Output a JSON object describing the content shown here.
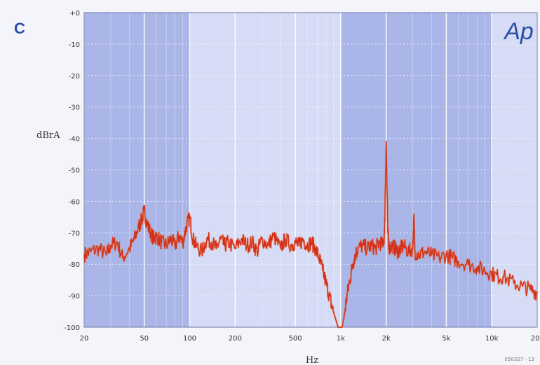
{
  "panel_letter": "C",
  "brand": "Ap",
  "footnote": "050327 - 13",
  "colors": {
    "band": "#aab6e8",
    "band_light": "#d6dcf5",
    "grid": "#ffffff",
    "trace": "#d2301c",
    "trace_highlight": "#f06a22",
    "axis_text": "#333333",
    "brand": "#2b4fa6"
  },
  "chart_data": {
    "type": "line",
    "title": "",
    "xlabel": "Hz",
    "ylabel": "dBrA",
    "x_scale": "log",
    "xlim": [
      20,
      20000
    ],
    "ylim": [
      -100,
      0
    ],
    "x_ticks": [
      {
        "value": 20,
        "label": "20"
      },
      {
        "value": 50,
        "label": "50"
      },
      {
        "value": 100,
        "label": "100"
      },
      {
        "value": 200,
        "label": "200"
      },
      {
        "value": 500,
        "label": "500"
      },
      {
        "value": 1000,
        "label": "1k"
      },
      {
        "value": 2000,
        "label": "2k"
      },
      {
        "value": 5000,
        "label": "5k"
      },
      {
        "value": 10000,
        "label": "10k"
      },
      {
        "value": 20000,
        "label": "20k"
      }
    ],
    "y_ticks": [
      {
        "value": 0,
        "label": "+0"
      },
      {
        "value": -10,
        "label": "-10"
      },
      {
        "value": -20,
        "label": "-20"
      },
      {
        "value": -30,
        "label": "-30"
      },
      {
        "value": -40,
        "label": "-40"
      },
      {
        "value": -50,
        "label": "-50"
      },
      {
        "value": -60,
        "label": "-60"
      },
      {
        "value": -70,
        "label": "-70"
      },
      {
        "value": -80,
        "label": "-80"
      },
      {
        "value": -90,
        "label": "-90"
      },
      {
        "value": -100,
        "label": "-100"
      }
    ],
    "grid": true,
    "series": [
      {
        "x": [
          20,
          22,
          25,
          28,
          30,
          33,
          36,
          40,
          43,
          46,
          48,
          50,
          52,
          55,
          58,
          60,
          65,
          70,
          75,
          80,
          85,
          90,
          95,
          100,
          105,
          110,
          120,
          130,
          140,
          150,
          160,
          170,
          180,
          200,
          220,
          240,
          260,
          280,
          300,
          330,
          360,
          400,
          430,
          470,
          500,
          530,
          560,
          600,
          640,
          680,
          720,
          760,
          800,
          840,
          880,
          920,
          960,
          980,
          1000,
          1020,
          1050,
          1100,
          1150,
          1200,
          1250,
          1300,
          1400,
          1500,
          1600,
          1700,
          1800,
          1900,
          1950,
          2000,
          2050,
          2100,
          2200,
          2300,
          2400,
          2500,
          2600,
          2800,
          3000,
          3050,
          3100,
          3300,
          3600,
          4000,
          4500,
          5000,
          5500,
          6000,
          7000,
          8000,
          9000,
          10000,
          11000,
          12000,
          14000,
          16000,
          18000,
          20000
        ],
        "y": [
          -77,
          -76,
          -75,
          -77,
          -74,
          -73,
          -78,
          -75,
          -72,
          -68,
          -66,
          -63,
          -67,
          -70,
          -72,
          -71,
          -73,
          -74,
          -72,
          -74,
          -71,
          -73,
          -68,
          -65,
          -72,
          -74,
          -76,
          -72,
          -73,
          -75,
          -72,
          -74,
          -73,
          -75,
          -72,
          -74,
          -73,
          -76,
          -72,
          -74,
          -71,
          -75,
          -72,
          -74,
          -73,
          -74,
          -72,
          -74,
          -73,
          -75,
          -78,
          -82,
          -86,
          -90,
          -94,
          -97,
          -100,
          -100,
          -100,
          -100,
          -97,
          -90,
          -85,
          -80,
          -77,
          -75,
          -74,
          -75,
          -74,
          -75,
          -73,
          -74,
          -70,
          -41,
          -70,
          -75,
          -74,
          -75,
          -76,
          -75,
          -74,
          -76,
          -75,
          -65,
          -76,
          -77,
          -76,
          -77,
          -78,
          -77,
          -78,
          -79,
          -80,
          -81,
          -82,
          -83,
          -84,
          -84,
          -86,
          -87,
          -88,
          -89
        ]
      }
    ]
  }
}
